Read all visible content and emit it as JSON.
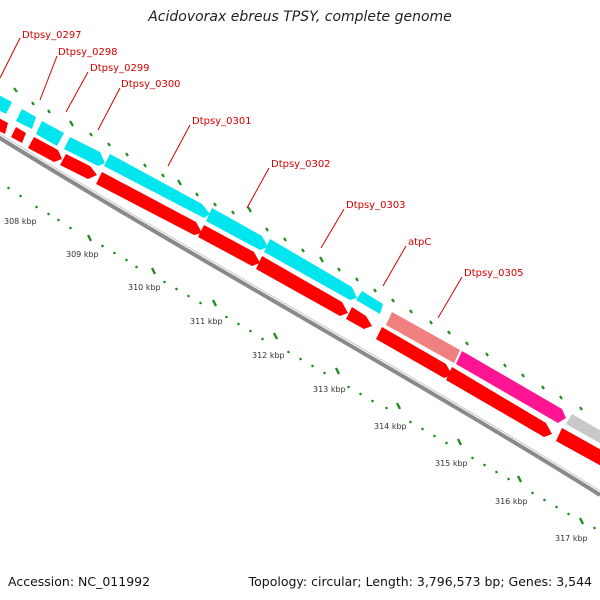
{
  "title": "Acidovorax ebreus TPSY, complete genome",
  "footer": {
    "accession": "Accession: NC_011992",
    "summary": "Topology: circular; Length: 3,796,573 bp; Genes: 3,544"
  },
  "colors": {
    "cds": "#ff0000",
    "gene_cyan": "#00e5ee",
    "gene_salmon": "#f08080",
    "gene_magenta": "#ff1493",
    "gene_grey": "#c8c8c8",
    "backbone": "#888888",
    "label": "#d40000",
    "tick": "#228b22"
  },
  "gene_labels": [
    "Dtpsy_0297",
    "Dtpsy_0298",
    "Dtpsy_0299",
    "Dtpsy_0300",
    "Dtpsy_0301",
    "Dtpsy_0302",
    "Dtpsy_0303",
    "atpC",
    "Dtpsy_0305"
  ],
  "kbp_labels": [
    "308 kbp",
    "309 kbp",
    "310 kbp",
    "311 kbp",
    "312 kbp",
    "313 kbp",
    "314 kbp",
    "315 kbp",
    "316 kbp",
    "317 kbp"
  ]
}
